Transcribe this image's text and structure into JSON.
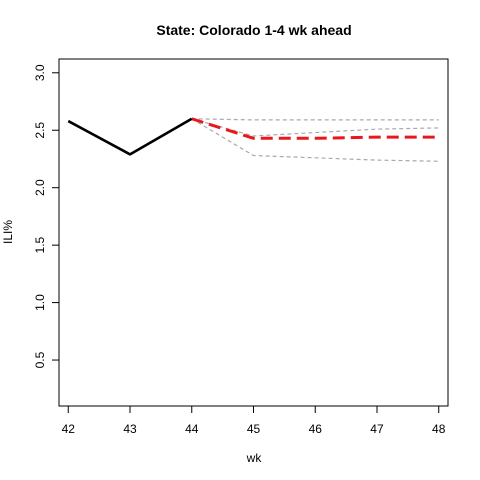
{
  "chart_data": {
    "type": "line",
    "title": "State: Colorado 1-4 wk ahead",
    "xlabel": "wk",
    "ylabel": "ILI%",
    "xlim": [
      41.85,
      48.15
    ],
    "ylim": [
      0.1,
      3.12
    ],
    "x_ticks": [
      42,
      43,
      44,
      45,
      46,
      47,
      48
    ],
    "y_ticks": [
      0.5,
      1.0,
      1.5,
      2.0,
      2.5,
      3.0
    ],
    "y_tick_labels": [
      "0.5",
      "1.0",
      "1.5",
      "2.0",
      "2.5",
      "3.0"
    ],
    "grid": false,
    "series": [
      {
        "role": "observed",
        "color": "#000000",
        "style": "solid",
        "x": [
          42,
          43,
          44
        ],
        "y": [
          2.58,
          2.29,
          2.6
        ]
      },
      {
        "role": "forecast-point",
        "color": "#e8191c",
        "style": "dashed",
        "x": [
          44,
          45,
          46,
          47,
          48
        ],
        "y": [
          2.6,
          2.43,
          2.43,
          2.44,
          2.44
        ]
      },
      {
        "role": "interval-upper",
        "color": "#aaaaaa",
        "style": "dashed",
        "x": [
          44,
          45,
          46,
          47,
          48
        ],
        "y": [
          2.6,
          2.59,
          2.59,
          2.59,
          2.59
        ]
      },
      {
        "role": "interval-mid",
        "color": "#aaaaaa",
        "style": "dashed",
        "x": [
          44,
          45,
          46,
          47,
          48
        ],
        "y": [
          2.6,
          2.45,
          2.48,
          2.51,
          2.52
        ]
      },
      {
        "role": "interval-lower",
        "color": "#aaaaaa",
        "style": "dashed",
        "x": [
          44,
          45,
          46,
          47,
          48
        ],
        "y": [
          2.6,
          2.28,
          2.26,
          2.24,
          2.23
        ]
      }
    ]
  }
}
